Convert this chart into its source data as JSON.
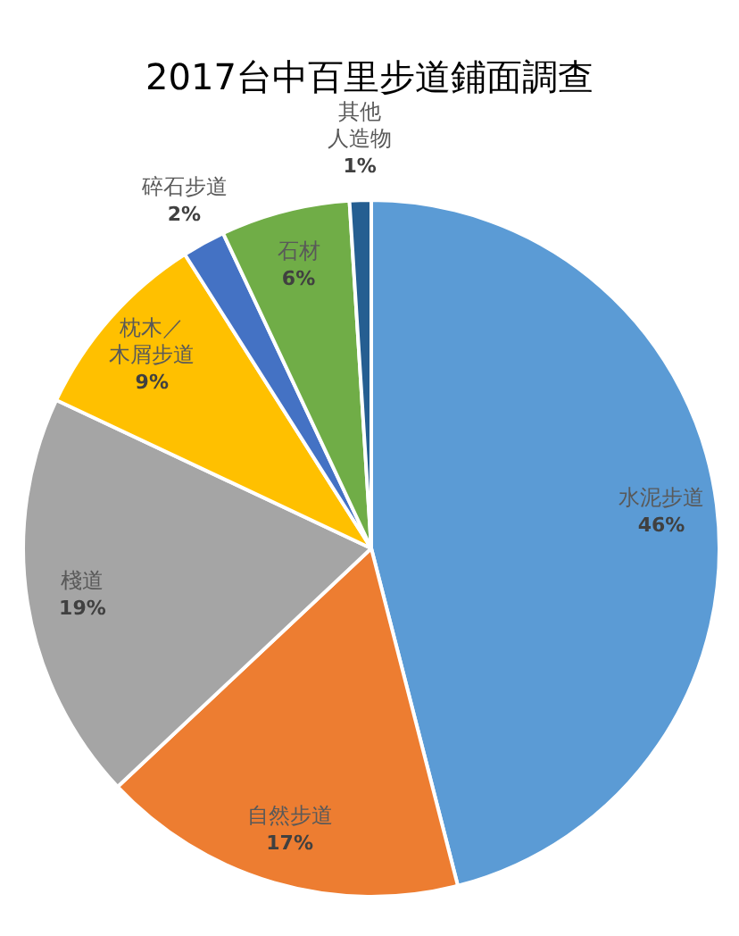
{
  "chart_data": {
    "type": "pie",
    "title": "2017台中百里步道鋪面調查",
    "categories": [
      "水泥步道",
      "自然步道",
      "棧道",
      "枕木／木屑步道",
      "碎石步道",
      "石材",
      "其他人造物"
    ],
    "values": [
      46,
      17,
      19,
      9,
      2,
      6,
      1
    ],
    "colors": [
      "#5b9bd5",
      "#ed7d31",
      "#a5a5a5",
      "#ffc000",
      "#4472c4",
      "#70ad47",
      "#255e91"
    ],
    "value_labels": [
      "46%",
      "17%",
      "19%",
      "9%",
      "2%",
      "6%",
      "1%"
    ]
  }
}
